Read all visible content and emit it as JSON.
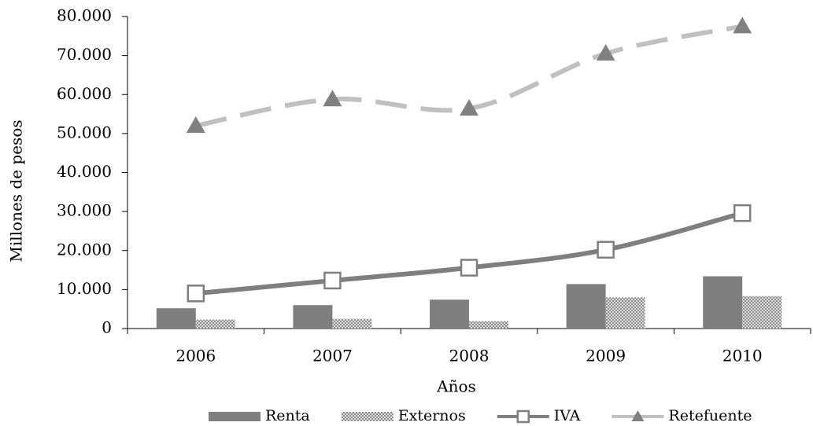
{
  "chart_data": {
    "type": "combo",
    "x_label": "Años",
    "y_label": "Millones de pesos",
    "categories": [
      "2006",
      "2007",
      "2008",
      "2009",
      "2010"
    ],
    "series": [
      {
        "name": "Renta",
        "kind": "bar",
        "color": "#7f7f7f",
        "values": [
          5200,
          6000,
          7400,
          11400,
          13400
        ]
      },
      {
        "name": "Externos",
        "kind": "bar",
        "color": "#9a9a9a",
        "pattern": true,
        "values": [
          2300,
          2500,
          1900,
          8000,
          8300
        ]
      },
      {
        "name": "IVA",
        "kind": "line",
        "color": "#7f7f7f",
        "marker": "square",
        "marker_color": "#ffffff",
        "values": [
          9000,
          12300,
          15600,
          20200,
          29600
        ]
      },
      {
        "name": "Retefuente",
        "kind": "line",
        "color": "#c0c0c0",
        "dashed": true,
        "marker": "triangle",
        "marker_color": "#808080",
        "values": [
          52000,
          58800,
          56400,
          70500,
          77500
        ]
      }
    ],
    "ylim": [
      0,
      80000
    ],
    "yticks": [
      0,
      {
        "value": 10000,
        "label": "10.000"
      },
      {
        "value": 20000,
        "label": "20.000"
      },
      {
        "value": 30000,
        "label": "30.000"
      },
      {
        "value": 40000,
        "label": "40.000"
      },
      {
        "value": 50000,
        "label": "50.000"
      },
      {
        "value": 60000,
        "label": "60.000"
      },
      {
        "value": 70000,
        "label": "70.000"
      },
      {
        "value": 80000,
        "label": "80.000"
      }
    ],
    "legend": "bottom"
  }
}
